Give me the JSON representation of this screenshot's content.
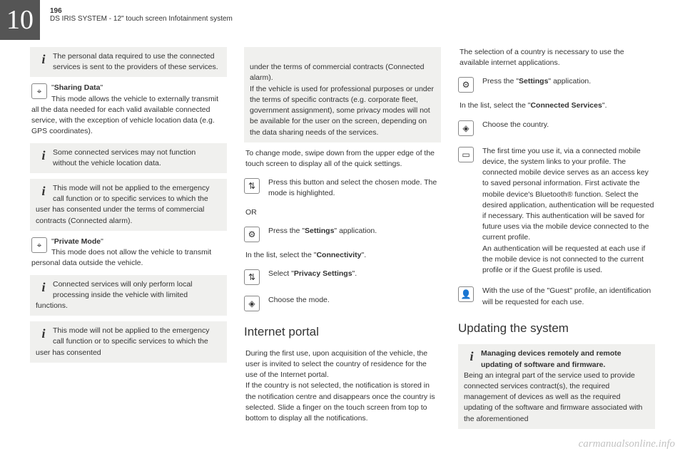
{
  "chapter": "10",
  "pageNum": "196",
  "headerTitle": "DS IRIS SYSTEM - 12\" touch screen Infotainment system",
  "watermark": "carmanualsonline.info",
  "col1": {
    "b1": "The personal data required to use the connected services is sent to the providers of these services.",
    "b2_title": "Sharing Data",
    "b2_body": "This mode allows the vehicle to externally transmit all the data needed for each valid available connected service, with the exception of vehicle location data (e.g. GPS coordinates).",
    "b3": "Some connected services may not function without the vehicle location data.",
    "b4": "This mode will not be applied to the emergency call function or to specific services to which the user has consented under the terms of commercial contracts (Connected alarm).",
    "b5_title": "Private Mode",
    "b5_body": "This mode does not allow the vehicle to transmit personal data outside the vehicle.",
    "b6": "Connected services will only perform local processing inside the vehicle with limited functions.",
    "b7": "This mode will not be applied to the emergency call function or to specific services to which the user has consented"
  },
  "col2": {
    "b1": "under the terms of commercial contracts (Connected alarm).\nIf the vehicle is used for professional purposes or under the terms of specific contracts (e.g. corporate fleet, government assignment), some privacy modes will not be available for the user on the screen, depending on the data sharing needs of the services.",
    "p1": "To change mode, swipe down from the upper edge of the touch screen to display all of the quick settings.",
    "s1": "Press this button and select the chosen mode. The mode is highlighted.",
    "or": "OR",
    "s2a": "Press the \"",
    "s2b": "Settings",
    "s2c": "\" application.",
    "p2a": "In the list, select the \"",
    "p2b": "Connectivity",
    "p2c": "\".",
    "s3a": "Select \"",
    "s3b": "Privacy Settings",
    "s3c": "\".",
    "s4": "Choose the mode.",
    "h2": "Internet portal",
    "p3": "During the first use, upon acquisition of the vehicle, the user is invited to select the country of residence for the use of the Internet portal.\nIf the country is not selected, the notification is stored in the notification centre and disappears once the country is selected. Slide a finger on the touch screen from top to bottom to display all the notifications."
  },
  "col3": {
    "p1": "The selection of a country is necessary to use the available internet applications.",
    "s1a": "Press the \"",
    "s1b": "Settings",
    "s1c": "\" application.",
    "p2a": "In the list, select the \"",
    "p2b": "Connected Services",
    "p2c": "\".",
    "s2": "Choose the country.",
    "s3": "The first time you use it, via a connected mobile device, the system links to your profile. The connected mobile device serves as an access key to saved personal information. First activate the mobile device's Bluetooth® function. Select the desired application, authentication will be requested if necessary. This authentication will be saved for future uses via the mobile device connected to the current profile.\nAn authentication will be requested at each use if the mobile device is not connected to the current profile or if the Guest profile is used.",
    "s4": "With the use of the \"Guest\" profile, an identification will be requested for each use.",
    "h2": "Updating the system",
    "b1a": "Managing devices remotely and remote updating of software and firmware.",
    "b1b": "Being an integral part of the service used to provide connected services contract(s), the required management of devices as well as the required updating of the software and firmware associated with the aforementioned"
  },
  "icons": {
    "info": "i",
    "pin": "⌖",
    "sort": "⇅",
    "gear": "⚙",
    "diamond": "◈",
    "device": "▭",
    "user": "👤"
  }
}
